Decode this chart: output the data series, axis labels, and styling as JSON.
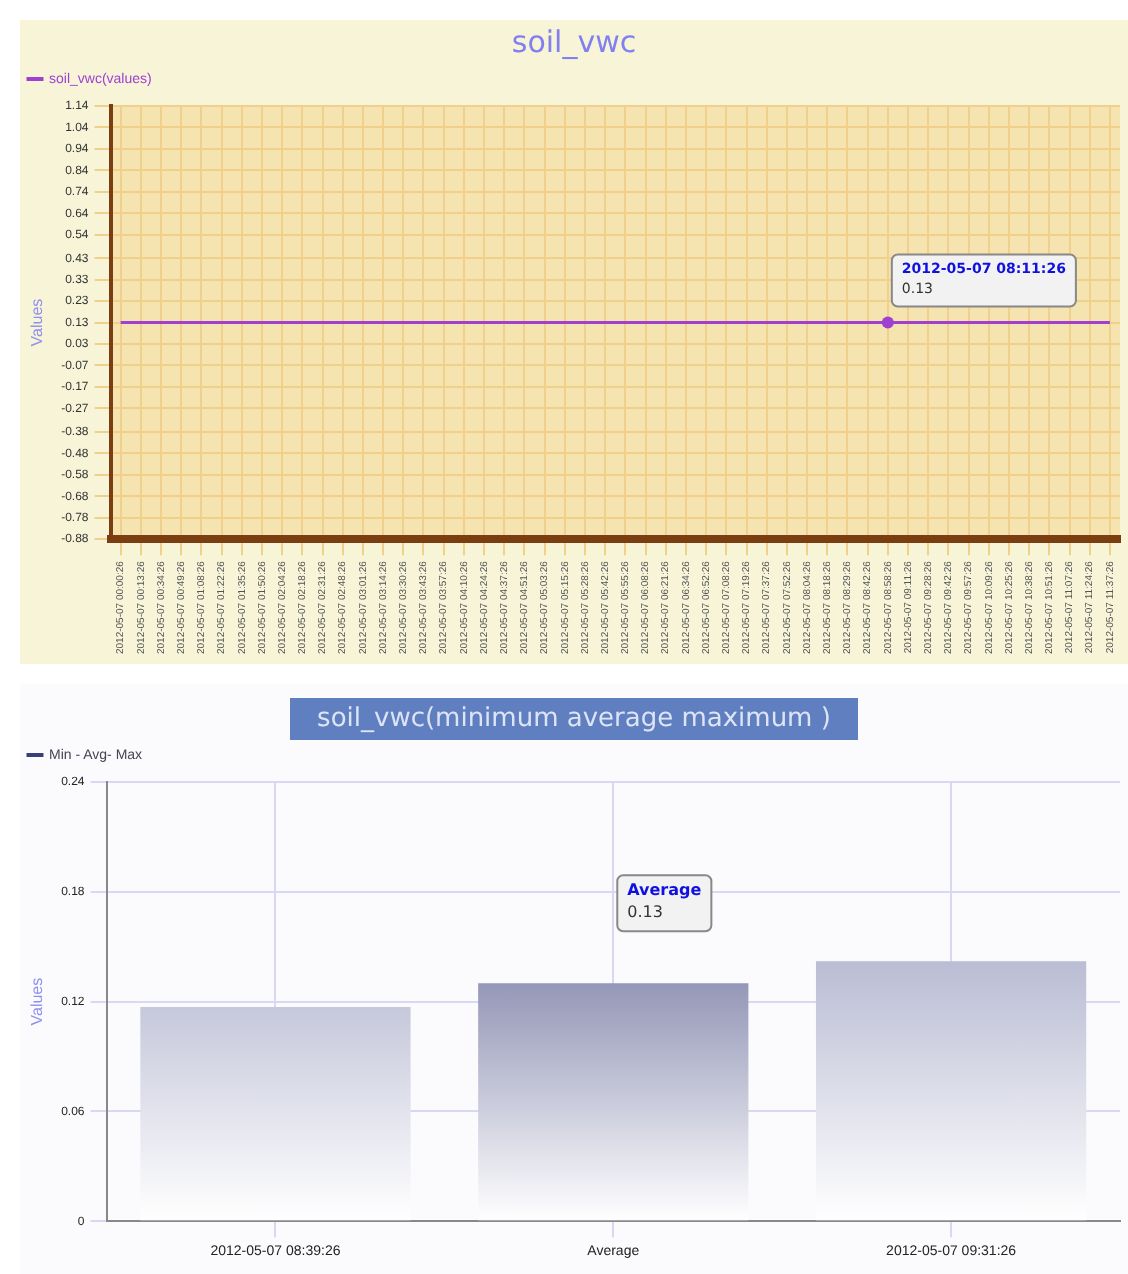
{
  "chart_data": [
    {
      "type": "line",
      "title": "soil_vwc",
      "ylabel": "Values",
      "categories": [
        "2012-05-07 00:00:26",
        "2012-05-07 00:13:26",
        "2012-05-07 00:34:26",
        "2012-05-07 00:49:26",
        "2012-05-07 01:08:26",
        "2012-05-07 01:22:26",
        "2012-05-07 01:35:26",
        "2012-05-07 01:50:26",
        "2012-05-07 02:04:26",
        "2012-05-07 02:18:26",
        "2012-05-07 02:31:26",
        "2012-05-07 02:48:26",
        "2012-05-07 03:01:26",
        "2012-05-07 03:14:26",
        "2012-05-07 03:30:26",
        "2012-05-07 03:43:26",
        "2012-05-07 03:57:26",
        "2012-05-07 04:10:26",
        "2012-05-07 04:24:26",
        "2012-05-07 04:37:26",
        "2012-05-07 04:51:26",
        "2012-05-07 05:03:26",
        "2012-05-07 05:15:26",
        "2012-05-07 05:28:26",
        "2012-05-07 05:42:26",
        "2012-05-07 05:55:26",
        "2012-05-07 06:08:26",
        "2012-05-07 06:21:26",
        "2012-05-07 06:34:26",
        "2012-05-07 06:52:26",
        "2012-05-07 07:08:26",
        "2012-05-07 07:19:26",
        "2012-05-07 07:37:26",
        "2012-05-07 07:52:26",
        "2012-05-07 08:04:26",
        "2012-05-07 08:18:26",
        "2012-05-07 08:29:26",
        "2012-05-07 08:42:26",
        "2012-05-07 08:58:26",
        "2012-05-07 09:11:26",
        "2012-05-07 09:28:26",
        "2012-05-07 09:42:26",
        "2012-05-07 09:57:26",
        "2012-05-07 10:09:26",
        "2012-05-07 10:25:26",
        "2012-05-07 10:38:26",
        "2012-05-07 10:51:26",
        "2012-05-07 11:07:26",
        "2012-05-07 11:24:26",
        "2012-05-07 11:37:26"
      ],
      "series": [
        {
          "name": "soil_vwc(values)",
          "color": "#a040d0",
          "values": [
            0.13,
            0.13,
            0.13,
            0.13,
            0.13,
            0.13,
            0.13,
            0.13,
            0.13,
            0.13,
            0.13,
            0.13,
            0.13,
            0.13,
            0.13,
            0.13,
            0.13,
            0.13,
            0.13,
            0.13,
            0.13,
            0.13,
            0.13,
            0.13,
            0.13,
            0.13,
            0.13,
            0.13,
            0.13,
            0.13,
            0.13,
            0.13,
            0.13,
            0.13,
            0.13,
            0.13,
            0.13,
            0.13,
            0.13,
            0.13,
            0.13,
            0.13,
            0.13,
            0.13,
            0.13,
            0.13,
            0.13,
            0.13,
            0.13,
            0.13
          ]
        }
      ],
      "ylim": [
        -0.88,
        1.14
      ],
      "yticks": [
        1.14,
        1.04,
        0.94,
        0.84,
        0.74,
        0.64,
        0.54,
        0.43,
        0.33,
        0.23,
        0.13,
        0.03,
        -0.07,
        -0.17,
        -0.27,
        -0.38,
        -0.48,
        -0.58,
        -0.68,
        -0.78,
        -0.88
      ],
      "grid": true,
      "legend": "top left",
      "marker": "none",
      "line_style": "solid",
      "annotations": [
        "2012-05-07 08:11:26",
        "0.13"
      ]
    },
    {
      "type": "bar",
      "title": "soil_vwc(minimum average maximum )",
      "ylabel": "Values",
      "categories": [
        "2012-05-07 08:39:26",
        "Average",
        "2012-05-07 09:31:26"
      ],
      "series": [
        {
          "name": "Min - Avg- Max",
          "color": "#3a3f7a",
          "colors": [
            "#8a8fb5",
            "#3a3f7a",
            "#8a8fb5"
          ],
          "values": [
            0.117,
            0.13,
            0.142
          ]
        }
      ],
      "ylim": [
        0,
        0.24
      ],
      "yticks": [
        0,
        0.06,
        0.12,
        0.18,
        0.24
      ],
      "grid": true,
      "legend": "top left",
      "annotations": [
        "Average",
        "0.13"
      ]
    }
  ]
}
